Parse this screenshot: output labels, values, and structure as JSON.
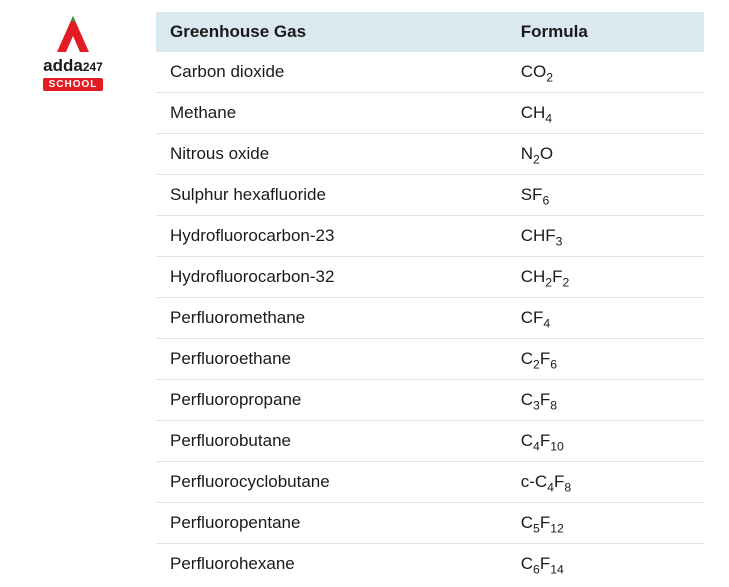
{
  "logo": {
    "brand_text": "adda",
    "brand_num": "247",
    "badge": "SCHOOL",
    "red": "#e31b23",
    "dark": "#1a1a1a"
  },
  "table": {
    "header_bg": "#d9e9ef",
    "border_color": "#e1e1e1",
    "columns": [
      "Greenhouse Gas",
      "Formula"
    ],
    "rows": [
      {
        "gas": "Carbon dioxide",
        "formula_parts": [
          "CO",
          {
            "sub": "2"
          }
        ]
      },
      {
        "gas": "Methane",
        "formula_parts": [
          "CH",
          {
            "sub": "4"
          }
        ]
      },
      {
        "gas": "Nitrous oxide",
        "formula_parts": [
          "N",
          {
            "sub": "2"
          },
          "O"
        ]
      },
      {
        "gas": "Sulphur hexafluoride",
        "formula_parts": [
          "SF",
          {
            "sub": "6"
          }
        ]
      },
      {
        "gas": "Hydrofluorocarbon-23",
        "formula_parts": [
          "CHF",
          {
            "sub": "3"
          }
        ]
      },
      {
        "gas": "Hydrofluorocarbon-32",
        "formula_parts": [
          "CH",
          {
            "sub": "2"
          },
          "F",
          {
            "sub": "2"
          }
        ]
      },
      {
        "gas": "Perfluoromethane",
        "formula_parts": [
          "CF",
          {
            "sub": "4"
          }
        ]
      },
      {
        "gas": "Perfluoroethane",
        "formula_parts": [
          "C",
          {
            "sub": "2"
          },
          "F",
          {
            "sub": "6"
          }
        ]
      },
      {
        "gas": "Perfluoropropane",
        "formula_parts": [
          "C",
          {
            "sub": "3"
          },
          "F",
          {
            "sub": "8"
          }
        ]
      },
      {
        "gas": "Perfluorobutane",
        "formula_parts": [
          "C",
          {
            "sub": "4"
          },
          "F",
          {
            "sub": "10"
          }
        ]
      },
      {
        "gas": "Perfluorocyclobutane",
        "formula_parts": [
          "c-C",
          {
            "sub": "4"
          },
          "F",
          {
            "sub": "8"
          }
        ]
      },
      {
        "gas": "Perfluoropentane",
        "formula_parts": [
          "C",
          {
            "sub": "5"
          },
          "F",
          {
            "sub": "12"
          }
        ]
      },
      {
        "gas": "Perfluorohexane",
        "formula_parts": [
          "C",
          {
            "sub": "6"
          },
          "F",
          {
            "sub": "14"
          }
        ]
      }
    ]
  }
}
